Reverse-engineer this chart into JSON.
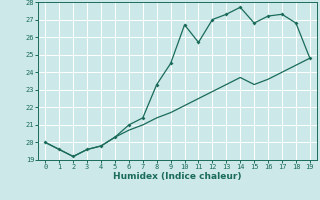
{
  "xlabel": "Humidex (Indice chaleur)",
  "x": [
    0,
    1,
    2,
    3,
    4,
    5,
    6,
    7,
    8,
    9,
    10,
    11,
    12,
    13,
    14,
    15,
    16,
    17,
    18,
    19
  ],
  "line1": [
    20.0,
    19.6,
    19.2,
    19.6,
    19.8,
    20.3,
    21.0,
    21.4,
    23.3,
    24.5,
    26.7,
    25.7,
    27.0,
    27.3,
    27.7,
    26.8,
    27.2,
    27.3,
    26.8,
    24.8
  ],
  "line2": [
    20.0,
    19.6,
    19.2,
    19.6,
    19.8,
    20.3,
    20.7,
    21.0,
    21.4,
    21.7,
    22.1,
    22.5,
    22.9,
    23.3,
    23.7,
    23.3,
    23.6,
    24.0,
    24.4,
    24.8
  ],
  "ylim": [
    19,
    28
  ],
  "xlim": [
    -0.5,
    19.5
  ],
  "yticks": [
    19,
    20,
    21,
    22,
    23,
    24,
    25,
    26,
    27,
    28
  ],
  "xticks": [
    0,
    1,
    2,
    3,
    4,
    5,
    6,
    7,
    8,
    9,
    10,
    11,
    12,
    13,
    14,
    15,
    16,
    17,
    18,
    19
  ],
  "line_color": "#1a6b5a",
  "bg_color": "#cce8e8",
  "grid_color": "#ffffff",
  "font_color": "#1a6b5a",
  "tick_fontsize": 5.0,
  "xlabel_fontsize": 6.5
}
